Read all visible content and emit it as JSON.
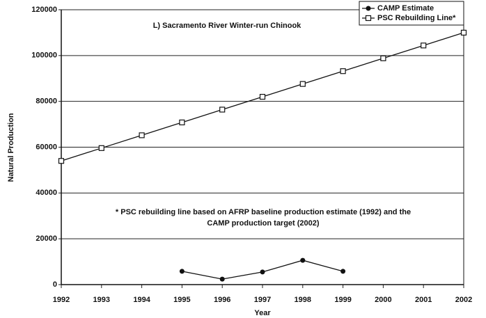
{
  "chart_data": {
    "type": "line",
    "annotation": "L) Sacramento River Winter-run Chinook",
    "footnote": [
      "* PSC rebuilding line based on AFRP baseline production estimate (1992) and the",
      "CAMP production target (2002)"
    ],
    "x_label": "Year",
    "y_label": "Natural Production",
    "x": [
      1992,
      1993,
      1994,
      1995,
      1996,
      1997,
      1998,
      1999,
      2000,
      2001,
      2002
    ],
    "series": [
      {
        "name": "CAMP Estimate",
        "color": "#111111",
        "marker": "filled-circle",
        "values": [
          null,
          null,
          null,
          5800,
          2400,
          5500,
          10600,
          5800,
          null,
          null,
          null
        ]
      },
      {
        "name": "PSC Rebuilding Line*",
        "color": "#111111",
        "marker": "open-square",
        "values": [
          54000,
          59600,
          65200,
          70800,
          76400,
          82000,
          87600,
          93200,
          98800,
          104400,
          110000
        ]
      }
    ],
    "xlim": [
      1992,
      2002
    ],
    "xticks": [
      1992,
      1993,
      1994,
      1995,
      1996,
      1997,
      1998,
      1999,
      2000,
      2001,
      2002
    ],
    "ylim": [
      0,
      120000
    ],
    "yticks": [
      0,
      20000,
      40000,
      60000,
      80000,
      100000,
      120000
    ],
    "grid": true,
    "legend": "upper-right"
  }
}
